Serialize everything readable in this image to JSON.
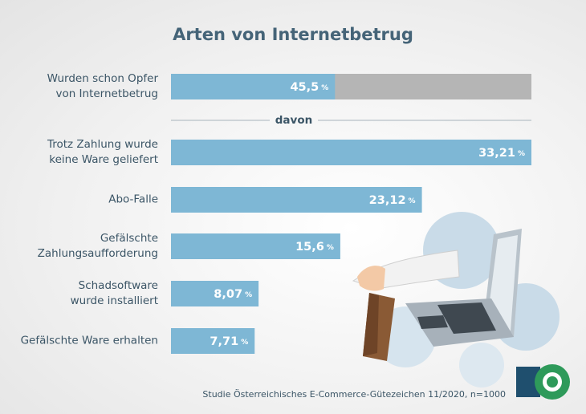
{
  "title": "Arten von Internetbetrug",
  "divider": "davon",
  "source": "Studie Österreichisches E-Commerce-Gütezeichen 11/2020, n=1000",
  "chart_data": [
    {
      "type": "bar",
      "orientation": "horizontal",
      "categories": [
        "Wurden schon Opfer\nvon Internetbetrug"
      ],
      "values": [
        45.5
      ],
      "value_labels": [
        "45,5"
      ],
      "unit": "%",
      "xlim": [
        0,
        100
      ],
      "color": "#7eb7d5",
      "track_color": "#b5b5b5"
    },
    {
      "type": "bar",
      "orientation": "horizontal",
      "categories": [
        "Trotz Zahlung wurde\nkeine Ware geliefert",
        "Abo-Falle",
        "Gefälschte\nZahlungsaufforderung",
        "Schadsoftware\nwurde installiert",
        "Gefälschte Ware erhalten"
      ],
      "values": [
        33.21,
        23.12,
        15.6,
        8.07,
        7.71
      ],
      "value_labels": [
        "33,21",
        "23,12",
        "15,6",
        "8,07",
        "7,71"
      ],
      "unit": "%",
      "xlim": [
        0,
        33.21
      ],
      "color": "#7eb7d5"
    }
  ]
}
